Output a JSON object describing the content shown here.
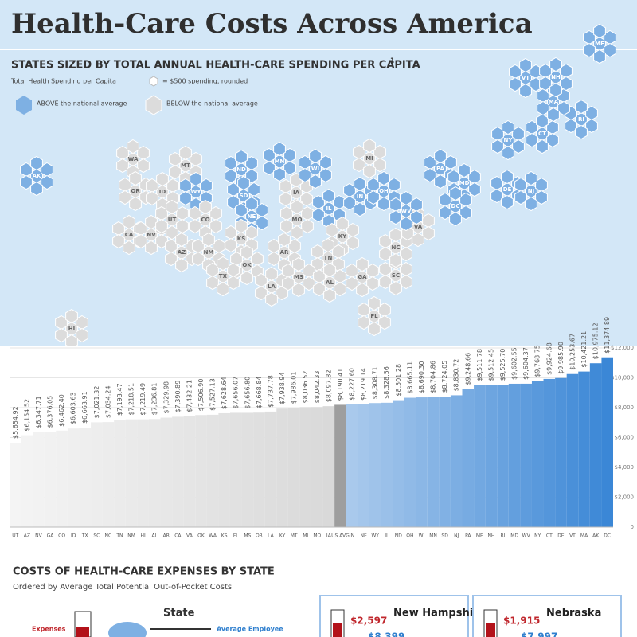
{
  "title": "Health-Care Costs Across America",
  "map": {
    "title": "STATES SIZED BY TOTAL ANNUAL HEALTH-CARE SPENDING PER CAPITA",
    "footnote_mark": "1",
    "legend_title": "Total Health Spending per Capita",
    "legend_unit": "= $500 spending, rounded",
    "legend_above": "ABOVE the national average",
    "legend_below": "BELOW the national average",
    "above_color": "#7eb0e3",
    "below_color": "#dcdcdc",
    "states": [
      {
        "label": "WA",
        "above": false
      },
      {
        "label": "OR",
        "above": false
      },
      {
        "label": "CA",
        "above": false
      },
      {
        "label": "NV",
        "above": false
      },
      {
        "label": "ID",
        "above": false
      },
      {
        "label": "MT",
        "above": false
      },
      {
        "label": "WY",
        "above": true
      },
      {
        "label": "UT",
        "above": false
      },
      {
        "label": "CO",
        "above": false
      },
      {
        "label": "AZ",
        "above": false
      },
      {
        "label": "NM",
        "above": false
      },
      {
        "label": "ND",
        "above": true
      },
      {
        "label": "SD",
        "above": true
      },
      {
        "label": "NE",
        "above": true
      },
      {
        "label": "KS",
        "above": false
      },
      {
        "label": "OK",
        "above": false
      },
      {
        "label": "TX",
        "above": false
      },
      {
        "label": "MN",
        "above": true
      },
      {
        "label": "IA",
        "above": false
      },
      {
        "label": "MO",
        "above": false
      },
      {
        "label": "AR",
        "above": false
      },
      {
        "label": "LA",
        "above": false
      },
      {
        "label": "WI",
        "above": true
      },
      {
        "label": "IL",
        "above": true
      },
      {
        "label": "MI",
        "above": false
      },
      {
        "label": "IN",
        "above": true
      },
      {
        "label": "OH",
        "above": true
      },
      {
        "label": "KY",
        "above": false
      },
      {
        "label": "TN",
        "above": false
      },
      {
        "label": "MS",
        "above": false
      },
      {
        "label": "AL",
        "above": false
      },
      {
        "label": "GA",
        "above": false
      },
      {
        "label": "FL",
        "above": false
      },
      {
        "label": "SC",
        "above": false
      },
      {
        "label": "NC",
        "above": false
      },
      {
        "label": "VA",
        "above": false
      },
      {
        "label": "WV",
        "above": true
      },
      {
        "label": "PA",
        "above": true
      },
      {
        "label": "NY",
        "above": true
      },
      {
        "label": "MD",
        "above": true
      },
      {
        "label": "DC",
        "above": true
      },
      {
        "label": "DE",
        "above": true
      },
      {
        "label": "NJ",
        "above": true
      },
      {
        "label": "CT",
        "above": true
      },
      {
        "label": "RI",
        "above": true
      },
      {
        "label": "MA",
        "above": true
      },
      {
        "label": "VT",
        "above": true
      },
      {
        "label": "NH",
        "above": true
      },
      {
        "label": "ME",
        "above": true
      },
      {
        "label": "AK",
        "above": true
      },
      {
        "label": "HI",
        "above": false
      }
    ]
  },
  "chart_data": {
    "type": "bar",
    "categories": [
      "UT",
      "AZ",
      "NV",
      "GA",
      "CO",
      "ID",
      "TX",
      "SC",
      "NC",
      "TN",
      "NM",
      "HI",
      "AL",
      "AR",
      "CA",
      "VA",
      "OK",
      "WA",
      "KS",
      "FL",
      "MS",
      "OR",
      "LA",
      "KY",
      "MT",
      "MI",
      "MO",
      "IA",
      "US AVG",
      "IN",
      "NE",
      "WY",
      "IL",
      "ND",
      "OH",
      "WI",
      "MN",
      "SD",
      "NJ",
      "PA",
      "ME",
      "NH",
      "RI",
      "MD",
      "WV",
      "NY",
      "CT",
      "DE",
      "VT",
      "MA",
      "AK",
      "DC"
    ],
    "values": [
      5654.92,
      6154.52,
      6347.71,
      6376.05,
      6462.4,
      6603.63,
      6663.91,
      7021.32,
      7034.24,
      7193.47,
      7218.51,
      7219.49,
      7236.81,
      7329.98,
      7390.89,
      7432.21,
      7506.9,
      7527.13,
      7628.64,
      7656.07,
      7656.8,
      7668.84,
      7737.78,
      7938.94,
      7986.01,
      8036.52,
      8042.33,
      8097.82,
      8190.41,
      8227.6,
      8219.14,
      8308.71,
      8328.56,
      8501.28,
      8665.11,
      8690.3,
      8704.86,
      8724.05,
      8830.72,
      9248.66,
      9511.78,
      9512.45,
      9525.7,
      9602.55,
      9604.37,
      9768.75,
      9924.68,
      9985.9,
      10253.67,
      10421.21,
      10975.12,
      11374.89
    ],
    "value_labels": [
      "$5,654.92",
      "$6,154.52",
      "$6,347.71",
      "$6,376.05",
      "$6,462.40",
      "$6,603.63",
      "$6,663.91",
      "$7,021.32",
      "$7,034.24",
      "$7,193.47",
      "$7,218.51",
      "$7,219.49",
      "$7,236.81",
      "$7,329.98",
      "$7,390.89",
      "$7,432.21",
      "$7,506.90",
      "$7,527.13",
      "$7,628.64",
      "$7,656.07",
      "$7,656.80",
      "$7,668.84",
      "$7,737.78",
      "$7,938.94",
      "$7,986.01",
      "$8,036.52",
      "$8,042.33",
      "$8,097.82",
      "$8,190.41",
      "$8,227.60",
      "$8,219.14",
      "$8,308.71",
      "$8,328.56",
      "$8,501.28",
      "$8,665.11",
      "$8,690.30",
      "$8,704.86",
      "$8,724.05",
      "$8,830.72",
      "$9,248.66",
      "$9,511.78",
      "$9,512.45",
      "$9,525.70",
      "$9,602.55",
      "$9,604.37",
      "$9,768.75",
      "$9,924.68",
      "$9,985.90",
      "$10,253.67",
      "$10,421.21",
      "$10,975.12",
      "$11,374.89"
    ],
    "colors": [
      "#f4f4f4",
      "#f3f3f3",
      "#f2f2f2",
      "#f1f1f1",
      "#f0f0f0",
      "#efefef",
      "#eeeeee",
      "#ededed",
      "#ececec",
      "#ebebeb",
      "#eaeaea",
      "#e9e9e9",
      "#e8e8e8",
      "#e7e7e7",
      "#e6e6e6",
      "#e5e5e5",
      "#e4e4e4",
      "#e3e3e3",
      "#e2e2e2",
      "#e1e1e1",
      "#e0e0e0",
      "#dfdfdf",
      "#dedede",
      "#dddddd",
      "#dcdcdc",
      "#dbdbdb",
      "#dadada",
      "#d9d9d9",
      "#9e9e9e",
      "#a9c9ec",
      "#a4c6eb",
      "#9fc3ea",
      "#9ac0e9",
      "#95bde8",
      "#90bae7",
      "#8bb7e6",
      "#86b4e5",
      "#81b1e4",
      "#7caee3",
      "#77abe2",
      "#72a8e1",
      "#6da5e0",
      "#68a2df",
      "#639fde",
      "#5e9cdd",
      "#5999dc",
      "#5496db",
      "#4f93da",
      "#4a90d9",
      "#458dd8",
      "#408ad7",
      "#3b87d6"
    ],
    "ylim": [
      0,
      12000
    ],
    "yticks": [
      0,
      {
        "value": 2000,
        "label": "$2,000"
      },
      {
        "value": 4000,
        "label": "$4,000"
      },
      {
        "value": 6000,
        "label": "$6,000"
      },
      {
        "value": 8000,
        "label": "$8,000"
      },
      {
        "value": 10000,
        "label": "$10,000"
      },
      {
        "value": 12000,
        "label": "$12,000"
      }
    ],
    "grid": true
  },
  "section": {
    "title": "COSTS OF HEALTH-CARE EXPENSES BY STATE",
    "subtitle": "Ordered by Average Total Potential Out-of-Pocket Costs",
    "legend_expenses": "Expenses",
    "legend_state": "State",
    "legend_employee": "Average Employee",
    "cards": [
      {
        "state": "New Hampshire",
        "expenses": "$2,597",
        "employee": "$8,399"
      },
      {
        "state": "Nebraska",
        "expenses": "$1,915",
        "employee": "$7,997"
      }
    ]
  }
}
